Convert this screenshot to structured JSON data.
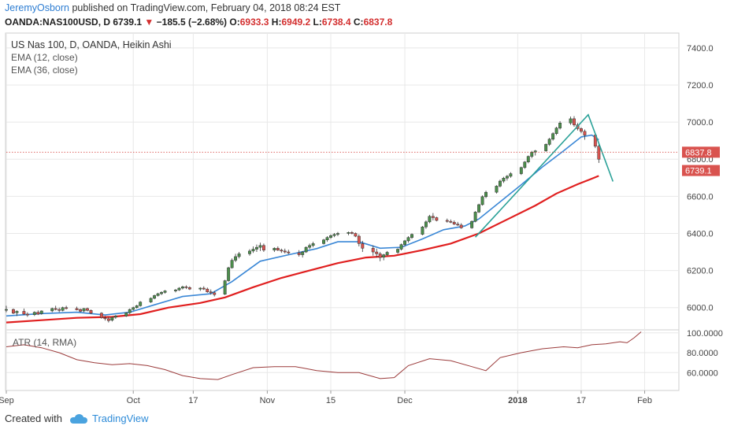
{
  "header": {
    "author": "JeremyOsborn",
    "published_text": " published on TradingView.com, February 04, 2018 08:24 EST"
  },
  "quote": {
    "symbol": "OANDA:NAS100USD, D",
    "last": "6739.1",
    "change": "−185.5 (−2.68%)",
    "open_label": "O:",
    "open": "6933.3",
    "high_label": "H:",
    "high": "6949.2",
    "low_label": "L:",
    "low": "6738.4",
    "close_label": "C:",
    "close": "6837.8"
  },
  "footer": {
    "created_with": "Created with",
    "brand": "TradingView"
  },
  "chart_data": {
    "type": "candlestick",
    "title": "US Nas 100, D, OANDA, Heikin Ashi",
    "indicators": [
      "EMA (12, close)",
      "EMA (36, close)"
    ],
    "colors": {
      "up": "#4c8f4c",
      "down": "#d9534f",
      "ema12": "#3a87d6",
      "ema36": "#e01f1f",
      "atr": "#9b3b3b",
      "trendline": "#2aa198",
      "grid": "#e8e8e8"
    },
    "price_axis": {
      "min": 5880,
      "max": 7480,
      "ticks": [
        "7400.0",
        "7200.0",
        "7000.0",
        "6800.0",
        "6600.0",
        "6400.0",
        "6200.0",
        "6000.0"
      ]
    },
    "x_ticks": [
      {
        "label": "Sep",
        "day": 0
      },
      {
        "label": "Oct",
        "day": 36
      },
      {
        "label": "17",
        "day": 53
      },
      {
        "label": "Nov",
        "day": 74
      },
      {
        "label": "15",
        "day": 92
      },
      {
        "label": "Dec",
        "day": 113
      },
      {
        "label": "2018",
        "day": 145
      },
      {
        "label": "17",
        "day": 163
      },
      {
        "label": "Feb",
        "day": 181
      }
    ],
    "last_days": 184,
    "price_labels": [
      {
        "value": 6837.8,
        "text": "6837.8"
      },
      {
        "value": 6739.1,
        "text": "6739.1"
      }
    ],
    "candles": [
      [
        0,
        5990,
        6010,
        5975,
        5990
      ],
      [
        2,
        5990,
        5995,
        5965,
        5970
      ],
      [
        3,
        5972,
        5985,
        5955,
        5980
      ],
      [
        5,
        5980,
        5995,
        5960,
        5965
      ],
      [
        6,
        5965,
        5975,
        5950,
        5960
      ],
      [
        8,
        5962,
        5980,
        5955,
        5975
      ],
      [
        9,
        5975,
        5985,
        5960,
        5965
      ],
      [
        10,
        5968,
        5985,
        5962,
        5982
      ],
      [
        13,
        5982,
        6000,
        5975,
        5995
      ],
      [
        14,
        5995,
        6010,
        5985,
        5990
      ],
      [
        15,
        5990,
        6000,
        5975,
        5985
      ],
      [
        16,
        5985,
        6005,
        5980,
        6000
      ],
      [
        17,
        6000,
        6010,
        5990,
        5995
      ],
      [
        20,
        5995,
        6005,
        5985,
        5988
      ],
      [
        21,
        5990,
        5995,
        5975,
        5980
      ],
      [
        22,
        5982,
        5998,
        5975,
        5995
      ],
      [
        23,
        5995,
        6000,
        5980,
        5985
      ],
      [
        24,
        5985,
        5990,
        5965,
        5970
      ],
      [
        27,
        5970,
        5975,
        5940,
        5945
      ],
      [
        28,
        5945,
        5955,
        5930,
        5940
      ],
      [
        29,
        5940,
        5950,
        5920,
        5930
      ],
      [
        30,
        5932,
        5950,
        5925,
        5948
      ],
      [
        31,
        5948,
        5960,
        5940,
        5955
      ],
      [
        34,
        5955,
        5975,
        5950,
        5972
      ],
      [
        35,
        5972,
        5995,
        5965,
        5990
      ],
      [
        36,
        5990,
        6005,
        5985,
        6000
      ],
      [
        37,
        6000,
        6015,
        5995,
        6010
      ],
      [
        38,
        6010,
        6035,
        6005,
        6030
      ],
      [
        41,
        6030,
        6055,
        6025,
        6050
      ],
      [
        42,
        6050,
        6070,
        6045,
        6065
      ],
      [
        43,
        6065,
        6080,
        6060,
        6075
      ],
      [
        44,
        6075,
        6088,
        6068,
        6082
      ],
      [
        45,
        6082,
        6095,
        6075,
        6090
      ],
      [
        48,
        6090,
        6100,
        6082,
        6095
      ],
      [
        49,
        6095,
        6110,
        6090,
        6105
      ],
      [
        50,
        6105,
        6118,
        6098,
        6112
      ],
      [
        51,
        6112,
        6120,
        6100,
        6108
      ],
      [
        52,
        6108,
        6115,
        6095,
        6100
      ],
      [
        55,
        6100,
        6110,
        6090,
        6105
      ],
      [
        56,
        6105,
        6115,
        6095,
        6100
      ],
      [
        57,
        6100,
        6108,
        6080,
        6085
      ],
      [
        58,
        6085,
        6098,
        6070,
        6080
      ],
      [
        59,
        6080,
        6090,
        6060,
        6070
      ],
      [
        62,
        6072,
        6150,
        6068,
        6145
      ],
      [
        63,
        6145,
        6220,
        6140,
        6215
      ],
      [
        64,
        6215,
        6265,
        6210,
        6255
      ],
      [
        65,
        6255,
        6290,
        6245,
        6275
      ],
      [
        66,
        6275,
        6300,
        6265,
        6290
      ],
      [
        69,
        6290,
        6315,
        6280,
        6305
      ],
      [
        70,
        6305,
        6330,
        6295,
        6315
      ],
      [
        71,
        6315,
        6340,
        6300,
        6325
      ],
      [
        72,
        6325,
        6350,
        6305,
        6335
      ],
      [
        73,
        6335,
        6345,
        6300,
        6310
      ],
      [
        76,
        6310,
        6325,
        6300,
        6320
      ],
      [
        77,
        6320,
        6330,
        6305,
        6310
      ],
      [
        78,
        6310,
        6318,
        6295,
        6305
      ],
      [
        79,
        6305,
        6318,
        6292,
        6300
      ],
      [
        80,
        6300,
        6312,
        6288,
        6295
      ],
      [
        83,
        6295,
        6310,
        6275,
        6285
      ],
      [
        84,
        6285,
        6305,
        6270,
        6300
      ],
      [
        85,
        6300,
        6330,
        6295,
        6325
      ],
      [
        86,
        6325,
        6345,
        6315,
        6335
      ],
      [
        87,
        6335,
        6355,
        6325,
        6345
      ],
      [
        90,
        6345,
        6370,
        6340,
        6365
      ],
      [
        91,
        6365,
        6385,
        6355,
        6378
      ],
      [
        92,
        6378,
        6395,
        6370,
        6388
      ],
      [
        93,
        6388,
        6402,
        6380,
        6395
      ],
      [
        94,
        6395,
        6408,
        6385,
        6400
      ],
      [
        97,
        6400,
        6410,
        6390,
        6405
      ],
      [
        98,
        6405,
        6412,
        6395,
        6400
      ],
      [
        99,
        6400,
        6405,
        6380,
        6385
      ],
      [
        100,
        6385,
        6395,
        6330,
        6345
      ],
      [
        101,
        6345,
        6360,
        6300,
        6320
      ],
      [
        104,
        6320,
        6335,
        6280,
        6300
      ],
      [
        105,
        6300,
        6318,
        6270,
        6290
      ],
      [
        106,
        6290,
        6300,
        6250,
        6270
      ],
      [
        107,
        6272,
        6290,
        6255,
        6285
      ],
      [
        108,
        6285,
        6305,
        6278,
        6298
      ],
      [
        111,
        6298,
        6320,
        6290,
        6315
      ],
      [
        112,
        6315,
        6345,
        6308,
        6340
      ],
      [
        113,
        6340,
        6365,
        6330,
        6360
      ],
      [
        114,
        6360,
        6385,
        6350,
        6378
      ],
      [
        115,
        6378,
        6400,
        6370,
        6395
      ],
      [
        118,
        6395,
        6440,
        6390,
        6435
      ],
      [
        119,
        6435,
        6470,
        6425,
        6462
      ],
      [
        120,
        6462,
        6500,
        6455,
        6492
      ],
      [
        121,
        6492,
        6510,
        6470,
        6485
      ],
      [
        122,
        6485,
        6490,
        6465,
        6470
      ],
      [
        125,
        6470,
        6480,
        6458,
        6465
      ],
      [
        126,
        6465,
        6475,
        6455,
        6460
      ],
      [
        127,
        6460,
        6470,
        6445,
        6450
      ],
      [
        128,
        6450,
        6462,
        6440,
        6445
      ],
      [
        129,
        6445,
        6455,
        6425,
        6430
      ],
      [
        132,
        6430,
        6470,
        6425,
        6465
      ],
      [
        133,
        6465,
        6520,
        6460,
        6515
      ],
      [
        134,
        6515,
        6560,
        6510,
        6555
      ],
      [
        135,
        6555,
        6605,
        6550,
        6598
      ],
      [
        136,
        6598,
        6630,
        6590,
        6622
      ],
      [
        139,
        6622,
        6660,
        6615,
        6655
      ],
      [
        140,
        6655,
        6690,
        6648,
        6682
      ],
      [
        141,
        6682,
        6705,
        6672,
        6698
      ],
      [
        142,
        6698,
        6715,
        6685,
        6708
      ],
      [
        143,
        6708,
        6730,
        6700,
        6722
      ],
      [
        146,
        6722,
        6760,
        6715,
        6755
      ],
      [
        147,
        6755,
        6790,
        6748,
        6785
      ],
      [
        148,
        6785,
        6820,
        6778,
        6815
      ],
      [
        149,
        6815,
        6845,
        6805,
        6838
      ],
      [
        150,
        6838,
        6850,
        6820,
        6845
      ],
      [
        153,
        6845,
        6885,
        6840,
        6880
      ],
      [
        154,
        6880,
        6915,
        6872,
        6908
      ],
      [
        155,
        6908,
        6945,
        6900,
        6938
      ],
      [
        156,
        6938,
        6975,
        6930,
        6968
      ],
      [
        157,
        6968,
        7005,
        6960,
        6995
      ],
      [
        160,
        6995,
        7030,
        6985,
        7018
      ],
      [
        161,
        7018,
        7032,
        6975,
        6985
      ],
      [
        162,
        6985,
        6995,
        6955,
        6965
      ],
      [
        163,
        6965,
        6972,
        6940,
        6950
      ],
      [
        164,
        6950,
        6960,
        6905,
        6930
      ],
      [
        167,
        6930,
        6940,
        6860,
        6870
      ],
      [
        168,
        6870,
        6880,
        6780,
        6800
      ]
    ],
    "ema12": [
      [
        0,
        5955
      ],
      [
        10,
        5968
      ],
      [
        20,
        5975
      ],
      [
        28,
        5960
      ],
      [
        35,
        5975
      ],
      [
        42,
        6015
      ],
      [
        50,
        6060
      ],
      [
        58,
        6075
      ],
      [
        64,
        6140
      ],
      [
        72,
        6250
      ],
      [
        80,
        6285
      ],
      [
        88,
        6318
      ],
      [
        94,
        6355
      ],
      [
        100,
        6355
      ],
      [
        106,
        6320
      ],
      [
        112,
        6325
      ],
      [
        118,
        6370
      ],
      [
        124,
        6420
      ],
      [
        130,
        6440
      ],
      [
        134,
        6478
      ],
      [
        140,
        6570
      ],
      [
        146,
        6662
      ],
      [
        152,
        6758
      ],
      [
        158,
        6845
      ],
      [
        163,
        6920
      ],
      [
        166,
        6930
      ],
      [
        168,
        6905
      ]
    ],
    "ema36": [
      [
        0,
        5920
      ],
      [
        10,
        5932
      ],
      [
        20,
        5945
      ],
      [
        30,
        5950
      ],
      [
        38,
        5965
      ],
      [
        46,
        6000
      ],
      [
        55,
        6025
      ],
      [
        62,
        6055
      ],
      [
        70,
        6110
      ],
      [
        78,
        6160
      ],
      [
        86,
        6200
      ],
      [
        94,
        6240
      ],
      [
        102,
        6270
      ],
      [
        110,
        6280
      ],
      [
        118,
        6310
      ],
      [
        126,
        6345
      ],
      [
        134,
        6400
      ],
      [
        142,
        6475
      ],
      [
        150,
        6550
      ],
      [
        156,
        6615
      ],
      [
        162,
        6665
      ],
      [
        166,
        6695
      ],
      [
        168,
        6710
      ]
    ],
    "trendlines": [
      [
        [
          133,
          6380
        ],
        [
          165,
          7040
        ],
        [
          172,
          6680
        ]
      ]
    ],
    "atr": {
      "label": "ATR (14, RMA)",
      "min": 42,
      "max": 103,
      "ticks": [
        "100.0000",
        "80.0000",
        "60.0000"
      ],
      "points": [
        [
          0,
          86
        ],
        [
          5,
          88
        ],
        [
          10,
          85
        ],
        [
          15,
          80
        ],
        [
          20,
          73
        ],
        [
          25,
          70
        ],
        [
          30,
          68
        ],
        [
          35,
          69
        ],
        [
          40,
          67
        ],
        [
          45,
          63
        ],
        [
          50,
          57
        ],
        [
          55,
          54
        ],
        [
          60,
          53
        ],
        [
          64,
          58
        ],
        [
          70,
          65
        ],
        [
          76,
          66
        ],
        [
          82,
          66
        ],
        [
          88,
          62
        ],
        [
          94,
          60
        ],
        [
          100,
          60
        ],
        [
          106,
          54
        ],
        [
          110,
          55
        ],
        [
          114,
          67
        ],
        [
          120,
          74
        ],
        [
          126,
          72
        ],
        [
          132,
          66
        ],
        [
          136,
          62
        ],
        [
          140,
          75
        ],
        [
          146,
          80
        ],
        [
          152,
          84
        ],
        [
          158,
          86
        ],
        [
          162,
          85
        ],
        [
          166,
          88
        ],
        [
          170,
          89
        ],
        [
          174,
          91
        ],
        [
          176,
          90
        ],
        [
          178,
          95
        ],
        [
          180,
          101
        ]
      ]
    }
  }
}
